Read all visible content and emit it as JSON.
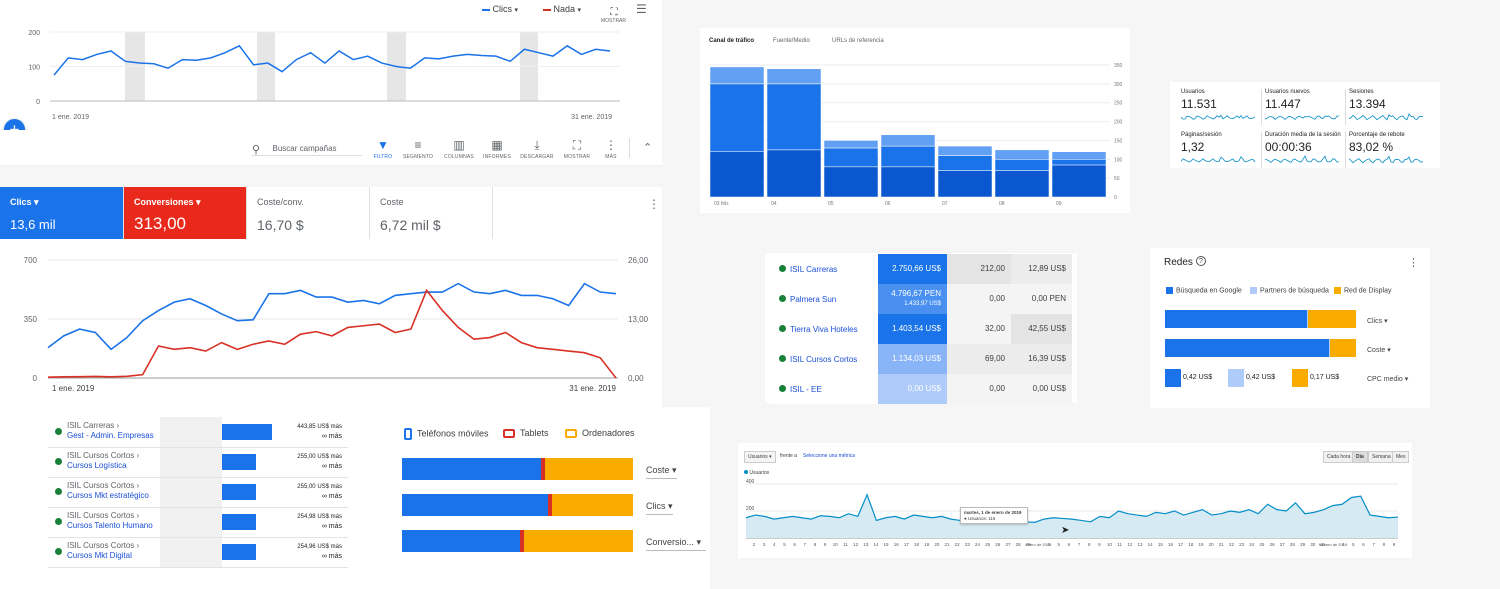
{
  "top_chart": {
    "legend1": "Clics",
    "legend2": "Nada",
    "mostrar": "MOSTRAR",
    "y_ticks": [
      "200",
      "100",
      "0"
    ],
    "x_start": "1 ene. 2019",
    "x_end": "31 ene. 2019",
    "values": [
      75,
      125,
      120,
      135,
      145,
      115,
      110,
      108,
      95,
      120,
      118,
      125,
      140,
      160,
      105,
      110,
      85,
      120,
      140,
      110,
      145,
      120,
      130,
      110,
      100,
      95,
      125,
      122,
      130,
      135,
      132,
      130,
      115,
      150,
      140,
      130,
      160,
      135,
      150,
      145
    ]
  },
  "toolbar": {
    "search_placeholder": "Buscar campañas",
    "items": [
      {
        "label": "FILTRO",
        "icon": "filter-icon"
      },
      {
        "label": "SEGMENTO",
        "icon": "segment-icon"
      },
      {
        "label": "COLUMNAS",
        "icon": "columns-icon"
      },
      {
        "label": "INFORMES",
        "icon": "reports-icon"
      },
      {
        "label": "DESCARGAR",
        "icon": "download-icon"
      },
      {
        "label": "MOSTRAR",
        "icon": "fullscreen-icon"
      },
      {
        "label": "MÁS",
        "icon": "more-icon"
      }
    ],
    "accent": "#1a73e8"
  },
  "scorecards": [
    {
      "title": "Clics",
      "value": "13,6 mil",
      "bg": "#1a73e8"
    },
    {
      "title": "Conversiones",
      "value": "313,00",
      "bg": "#e8291c"
    },
    {
      "title": "Coste/conv.",
      "value": "16,70 $",
      "bg": "#ffffff"
    },
    {
      "title": "Coste",
      "value": "6,72 mil $",
      "bg": "#ffffff"
    }
  ],
  "main_chart": {
    "y_left": [
      "700",
      "350",
      "0"
    ],
    "y_right": [
      "26,00",
      "13,00",
      "0,00"
    ],
    "x_start": "1 ene. 2019",
    "x_end": "31 ene. 2019",
    "blue": [
      180,
      250,
      290,
      270,
      170,
      240,
      340,
      400,
      450,
      470,
      430,
      380,
      340,
      345,
      500,
      500,
      520,
      480,
      480,
      450,
      460,
      440,
      490,
      500,
      510,
      510,
      560,
      510,
      500,
      520,
      490,
      490,
      470,
      430,
      560,
      510,
      500
    ],
    "red": [
      5,
      7,
      8,
      9,
      7,
      10,
      20,
      190,
      170,
      180,
      160,
      210,
      170,
      200,
      220,
      200,
      260,
      275,
      250,
      300,
      310,
      320,
      270,
      290,
      520,
      400,
      300,
      230,
      240,
      270,
      210,
      180,
      170,
      160,
      150,
      120,
      0
    ]
  },
  "campaigns": [
    {
      "group": "ISIL Carreras ›",
      "name": "Gest - Admin. Empresas",
      "v1": "443,85 US$ más",
      "v2": "∞ más",
      "bar": 1.0
    },
    {
      "group": "ISIL Cursos Cortos ›",
      "name": "Cursos Logística",
      "v1": "255,00 US$ más",
      "v2": "∞ más",
      "bar": 0.68
    },
    {
      "group": "ISIL Cursos Cortos ›",
      "name": "Cursos Mkt estratégico",
      "v1": "255,00 US$ más",
      "v2": "∞ más",
      "bar": 0.68
    },
    {
      "group": "ISIL Cursos Cortos ›",
      "name": "Cursos Talento Humano",
      "v1": "254,98 US$ más",
      "v2": "∞ más",
      "bar": 0.67
    },
    {
      "group": "ISIL Cursos Cortos ›",
      "name": "Cursos Mkt Digital",
      "v1": "254,96 US$ más",
      "v2": "∞ más",
      "bar": 0.67
    }
  ],
  "devices": {
    "legend": [
      "Teléfonos móviles",
      "Tablets",
      "Ordenadores"
    ],
    "colors": [
      "#1a73e8",
      "#d93025",
      "#f9ab00"
    ],
    "rows": [
      {
        "label": "Coste",
        "parts": [
          0.6,
          0.02,
          0.38
        ]
      },
      {
        "label": "Clics",
        "parts": [
          0.63,
          0.02,
          0.35
        ]
      },
      {
        "label": "Conversio...",
        "parts": [
          0.51,
          0.02,
          0.47
        ]
      }
    ]
  },
  "traffic": {
    "tabs": [
      "Canal de tráfico",
      "Fuente/Medio",
      "URLs de referencia"
    ],
    "y_ticks": [
      "350",
      "300",
      "250",
      "200",
      "150",
      "100",
      "50",
      "0"
    ],
    "categories": [
      "03 feb.",
      "04",
      "05",
      "06",
      "07",
      "08",
      "09"
    ],
    "stacks": [
      [
        120,
        180,
        45
      ],
      [
        125,
        175,
        40
      ],
      [
        80,
        50,
        20
      ],
      [
        80,
        55,
        30
      ],
      [
        70,
        40,
        25
      ],
      [
        70,
        30,
        25
      ],
      [
        85,
        15,
        20
      ]
    ]
  },
  "metrics": [
    {
      "label": "Usuarios",
      "value": "11.531"
    },
    {
      "label": "Usuarios nuevos",
      "value": "11.447"
    },
    {
      "label": "Sesiones",
      "value": "13.394"
    },
    {
      "label": "Páginas/sesión",
      "value": "1,32"
    },
    {
      "label": "Duración media de la sesión",
      "value": "00:00:36"
    },
    {
      "label": "Porcentaje de rebote",
      "value": "83,02 %"
    }
  ],
  "acc_table": [
    {
      "name": "ISIL Carreras",
      "c1": "2.750,66 US$",
      "c1b": "",
      "c2": "212,00",
      "c3": "12,89 US$",
      "i1": 0,
      "i2": 1,
      "i3": 2
    },
    {
      "name": "Palmera Sun",
      "c1": "4.796,67 PEN",
      "c1b": "1.433,97 US$",
      "c2": "0,00",
      "c3": "0,00 PEN",
      "i1": 1,
      "i2": 3,
      "i3": 3
    },
    {
      "name": "Tierra Viva Hoteles",
      "c1": "1.403,54 US$",
      "c1b": "",
      "c2": "32,00",
      "c3": "42,55 US$",
      "i1": 0,
      "i2": 3,
      "i3": 1
    },
    {
      "name": "ISIL Cursos Cortos",
      "c1": "1.134,03 US$",
      "c1b": "",
      "c2": "69,00",
      "c3": "16,39 US$",
      "i1": 2,
      "i2": 2,
      "i3": 2
    },
    {
      "name": "ISIL - EE",
      "c1": "0,00 US$",
      "c1b": "",
      "c2": "0,00",
      "c3": "0,00 US$",
      "i1": 3,
      "i2": 3,
      "i3": 3
    }
  ],
  "redes": {
    "title": "Redes",
    "legend": [
      "Búsqueda en Google",
      "Partners de búsqueda",
      "Red de Display"
    ],
    "colors": [
      "#1a73e8",
      "#aecbfa",
      "#f9ab00"
    ],
    "bars": [
      {
        "label": "Clics",
        "parts": [
          0.745,
          0.005,
          0.25
        ]
      },
      {
        "label": "Coste",
        "parts": [
          0.86,
          0.005,
          0.135
        ]
      }
    ],
    "cpc": {
      "label": "CPC medio",
      "values": [
        "0,42 US$",
        "0,42 US$",
        "0,17 US$"
      ]
    }
  },
  "ga_users": {
    "metric_select": "Usuarios",
    "vs": "frente a",
    "select_metric": "Seleccione una métrica",
    "toggles": [
      "Cada hora",
      "Día",
      "Semana",
      "Mes"
    ],
    "series_name": "Usuarios",
    "y_ticks": [
      "400",
      "200"
    ],
    "tooltip_date": "martes, 1 de enero de 2019",
    "tooltip_value": "● Usuarios: 116",
    "x_labels": [
      "2",
      "3",
      "4",
      "5",
      "6",
      "7",
      "8",
      "9",
      "10",
      "11",
      "12",
      "13",
      "14",
      "15",
      "16",
      "17",
      "18",
      "19",
      "20",
      "21",
      "22",
      "23",
      "24",
      "25",
      "26",
      "27",
      "28",
      "29",
      "enero de 2019",
      "4",
      "5",
      "6",
      "7",
      "8",
      "9",
      "10",
      "11",
      "12",
      "13",
      "14",
      "15",
      "16",
      "17",
      "18",
      "19",
      "20",
      "21",
      "22",
      "23",
      "24",
      "25",
      "26",
      "27",
      "28",
      "29",
      "30",
      "31",
      "febrero de 2019",
      "4",
      "5",
      "6",
      "7",
      "8",
      "9"
    ],
    "values": [
      150,
      170,
      160,
      140,
      150,
      160,
      150,
      140,
      165,
      160,
      150,
      180,
      160,
      320,
      130,
      150,
      160,
      140,
      170,
      160,
      150,
      160,
      140,
      130,
      110,
      140,
      165,
      160,
      140,
      130,
      120,
      116,
      140,
      150,
      145,
      140,
      130,
      120,
      160,
      150,
      200,
      180,
      170,
      160,
      190,
      180,
      200,
      170,
      190,
      210,
      170,
      180,
      200,
      190,
      210,
      180,
      250,
      210,
      200,
      260,
      180,
      190,
      210,
      240,
      250,
      300,
      310,
      170,
      160,
      150,
      155
    ]
  }
}
